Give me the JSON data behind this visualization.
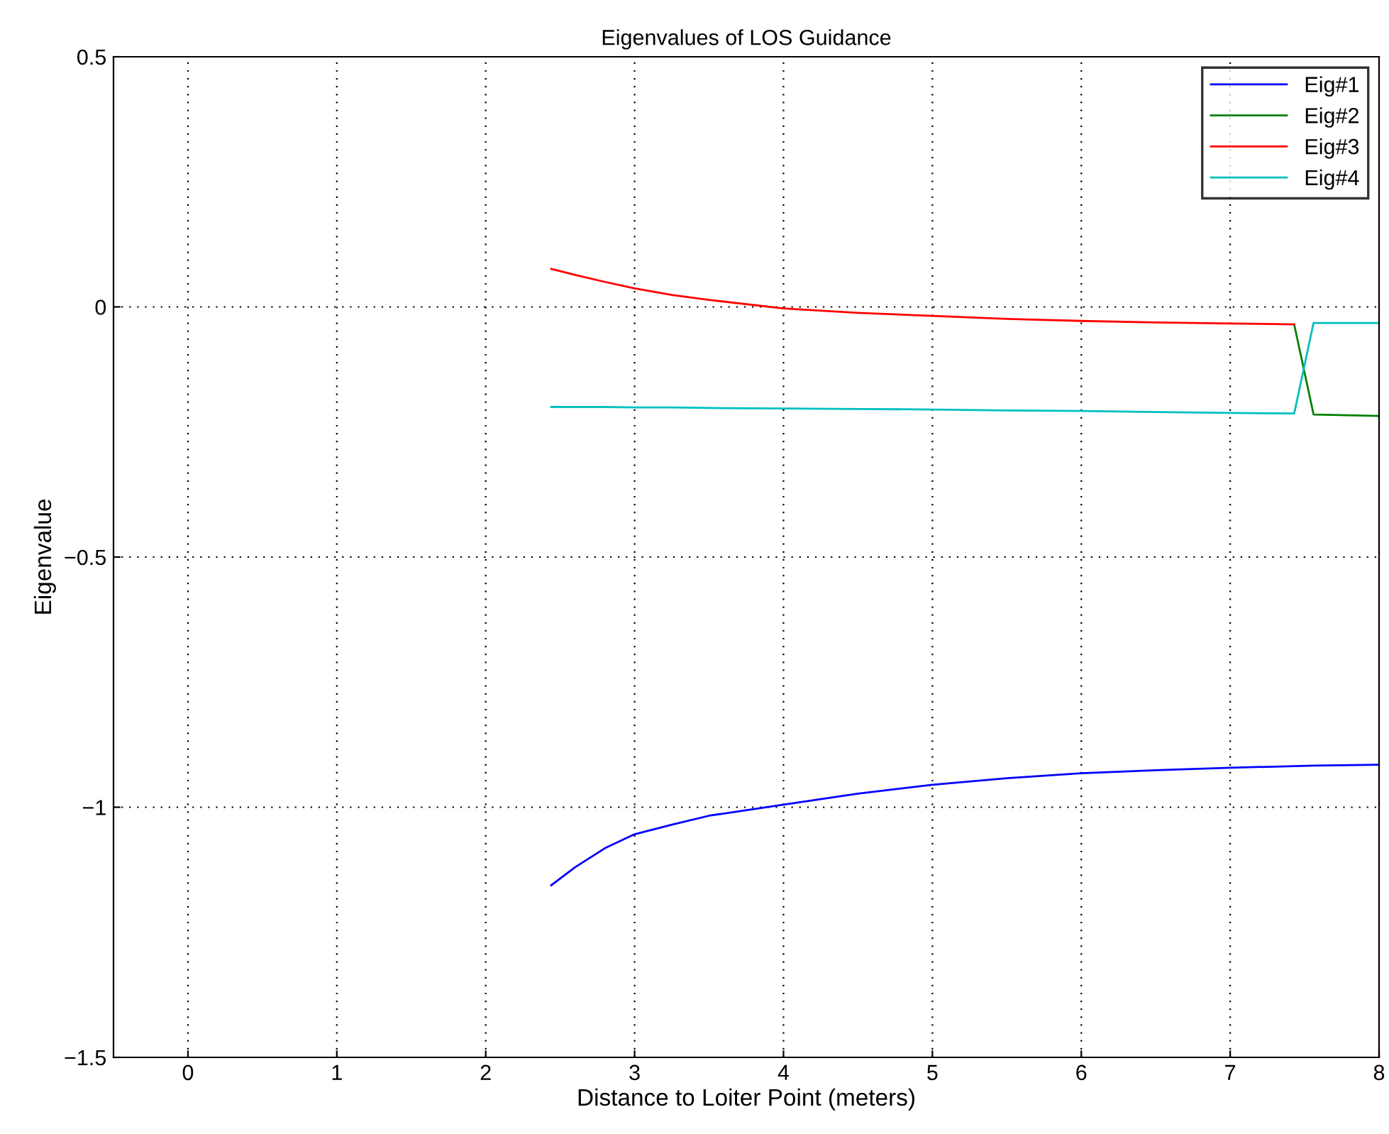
{
  "chart_data": {
    "type": "line",
    "title": "Eigenvalues of LOS Guidance",
    "xlabel": "Distance to Loiter Point (meters)",
    "ylabel": "Eigenvalue",
    "x": [
      2.44,
      2.6,
      2.8,
      3,
      3.25,
      3.5,
      4,
      4.5,
      5,
      5.5,
      6,
      6.5,
      7,
      7.43,
      7.56,
      8
    ],
    "series": [
      {
        "name": "Eig#1",
        "color": "#0000ff",
        "values": [
          -1.156,
          -1.12,
          -1.082,
          -1.054,
          -1.035,
          -1.017,
          -0.995,
          -0.973,
          -0.955,
          -0.942,
          -0.932,
          -0.926,
          -0.921,
          -0.918,
          -0.917,
          -0.915
        ]
      },
      {
        "name": "Eig#2",
        "color": "#008000",
        "values": [
          null,
          null,
          null,
          null,
          null,
          null,
          null,
          null,
          null,
          null,
          null,
          null,
          null,
          -0.035,
          -0.215,
          -0.218
        ]
      },
      {
        "name": "Eig#3",
        "color": "#ff0000",
        "values": [
          0.076,
          0.064,
          0.05,
          0.037,
          0.024,
          0.014,
          -0.003,
          -0.012,
          -0.018,
          -0.024,
          -0.028,
          -0.031,
          -0.033,
          -0.035,
          null,
          null
        ]
      },
      {
        "name": "Eig#4",
        "color": "#00bfbf",
        "values": [
          -0.2,
          -0.2,
          -0.2,
          -0.201,
          -0.201,
          -0.202,
          -0.203,
          -0.204,
          -0.205,
          -0.207,
          -0.208,
          -0.21,
          -0.212,
          -0.213,
          -0.032,
          -0.032
        ]
      }
    ],
    "xlim": [
      -0.5,
      8
    ],
    "xticks": [
      0,
      1,
      2,
      3,
      4,
      5,
      6,
      7,
      8
    ],
    "ylim": [
      -1.5,
      0.5
    ],
    "yticks": [
      {
        "value": -1.5,
        "label": "−1.5"
      },
      {
        "value": -1,
        "label": "−1"
      },
      {
        "value": -0.5,
        "label": "−0.5"
      },
      0,
      0.5
    ],
    "grid": true,
    "legend": "top right",
    "line_style": "solid",
    "marker": "none"
  }
}
